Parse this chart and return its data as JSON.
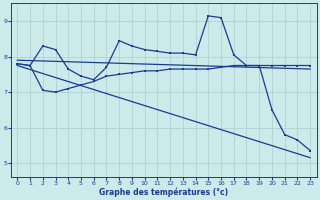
{
  "xlabel": "Graphe des températures (°c)",
  "background_color": "#cceaea",
  "grid_color": "#aacccc",
  "line_color": "#1a3a9a",
  "xlim": [
    -0.5,
    23.5
  ],
  "ylim": [
    4.6,
    9.5
  ],
  "yticks": [
    5,
    6,
    7,
    8,
    9
  ],
  "xticks": [
    0,
    1,
    2,
    3,
    4,
    5,
    6,
    7,
    8,
    9,
    10,
    11,
    12,
    13,
    14,
    15,
    16,
    17,
    18,
    19,
    20,
    21,
    22,
    23
  ],
  "temp_x": [
    0,
    1,
    2,
    3,
    4,
    5,
    6,
    7,
    8,
    9,
    10,
    11,
    12,
    13,
    14,
    15,
    16,
    17,
    18,
    19,
    20,
    21,
    22,
    23
  ],
  "temp_y": [
    7.8,
    7.75,
    8.3,
    8.2,
    7.65,
    7.45,
    7.35,
    7.7,
    8.45,
    8.3,
    8.2,
    8.15,
    8.1,
    8.1,
    8.05,
    9.15,
    9.1,
    8.05,
    7.75,
    7.75,
    6.5,
    5.8,
    5.65,
    5.35
  ],
  "flat_x": [
    0,
    1,
    2,
    3,
    4,
    5,
    6,
    7,
    8,
    9,
    10,
    11,
    12,
    13,
    14,
    15,
    16,
    17,
    18,
    19,
    20,
    21,
    22,
    23
  ],
  "flat_y": [
    7.8,
    7.75,
    7.05,
    7.0,
    7.1,
    7.2,
    7.3,
    7.45,
    7.5,
    7.55,
    7.6,
    7.6,
    7.65,
    7.65,
    7.65,
    7.65,
    7.7,
    7.75,
    7.75,
    7.75,
    7.75,
    7.75,
    7.75,
    7.75
  ],
  "trend1_x": [
    0,
    23
  ],
  "trend1_y": [
    7.9,
    7.65
  ],
  "trend2_x": [
    0,
    23
  ],
  "trend2_y": [
    7.75,
    5.15
  ]
}
